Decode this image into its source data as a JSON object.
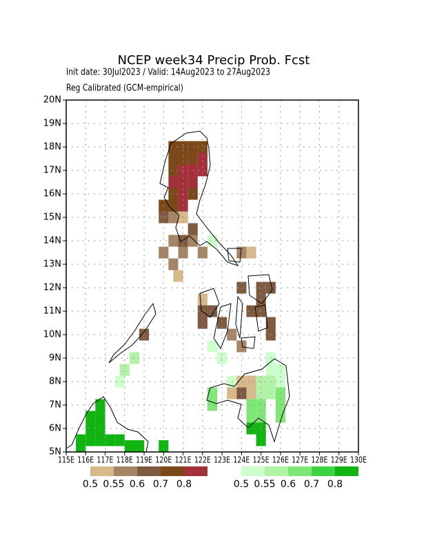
{
  "chart_data": {
    "type": "gridmap",
    "title": "NCEP week34 Precip Prob. Fcst",
    "subtitle": "Init date: 30Jul2023 / Valid: 14Aug2023 to 27Aug2023",
    "subtitle2": "Reg Calibrated (GCM-empirical)",
    "xlim": [
      115,
      130
    ],
    "ylim": [
      5,
      20
    ],
    "xticks": [
      {
        "value": 115,
        "label": "115E"
      },
      {
        "value": 116,
        "label": "116E"
      },
      {
        "value": 117,
        "label": "117E"
      },
      {
        "value": 118,
        "label": "118E"
      },
      {
        "value": 119,
        "label": "119E"
      },
      {
        "value": 120,
        "label": "120E"
      },
      {
        "value": 121,
        "label": "121E"
      },
      {
        "value": 122,
        "label": "122E"
      },
      {
        "value": 123,
        "label": "123E"
      },
      {
        "value": 124,
        "label": "124E"
      },
      {
        "value": 125,
        "label": "125E"
      },
      {
        "value": 126,
        "label": "126E"
      },
      {
        "value": 127,
        "label": "127E"
      },
      {
        "value": 128,
        "label": "128E"
      },
      {
        "value": 129,
        "label": "129E"
      },
      {
        "value": 130,
        "label": "130E"
      }
    ],
    "yticks": [
      {
        "value": 5,
        "label": "5N"
      },
      {
        "value": 6,
        "label": "6N"
      },
      {
        "value": 7,
        "label": "7N"
      },
      {
        "value": 8,
        "label": "8N"
      },
      {
        "value": 9,
        "label": "9N"
      },
      {
        "value": 10,
        "label": "10N"
      },
      {
        "value": 11,
        "label": "11N"
      },
      {
        "value": 12,
        "label": "12N"
      },
      {
        "value": 13,
        "label": "13N"
      },
      {
        "value": 14,
        "label": "14N"
      },
      {
        "value": 15,
        "label": "15N"
      },
      {
        "value": 16,
        "label": "16N"
      },
      {
        "value": 17,
        "label": "17N"
      },
      {
        "value": 18,
        "label": "18N"
      },
      {
        "value": 19,
        "label": "19N"
      },
      {
        "value": 20,
        "label": "20N"
      }
    ],
    "grid": true,
    "legend_dry": [
      {
        "label": "0.5",
        "color": "#d7b98c"
      },
      {
        "label": "0.55",
        "color": "#a58566"
      },
      {
        "label": "0.6",
        "color": "#7d5a40"
      },
      {
        "label": "0.7",
        "color": "#7b4818"
      },
      {
        "label": "0.8",
        "color": "#a3303a"
      }
    ],
    "legend_wet": [
      {
        "label": "0.5",
        "color": "#ccffcc"
      },
      {
        "label": "0.55",
        "color": "#b2f2a6"
      },
      {
        "label": "0.6",
        "color": "#80e678"
      },
      {
        "label": "0.7",
        "color": "#3ed246"
      },
      {
        "label": "0.8",
        "color": "#12b412"
      }
    ],
    "cells": [
      [
        120.5,
        18.0,
        "#7b4818"
      ],
      [
        121.0,
        18.0,
        "#7b4818"
      ],
      [
        121.5,
        18.0,
        "#7b4818"
      ],
      [
        122.0,
        18.0,
        "#7b4818"
      ],
      [
        120.5,
        17.5,
        "#7b4818"
      ],
      [
        121.0,
        17.5,
        "#7b4818"
      ],
      [
        121.5,
        17.5,
        "#7b4818"
      ],
      [
        122.0,
        17.5,
        "#a3303a"
      ],
      [
        120.5,
        17.0,
        "#7b4818"
      ],
      [
        121.0,
        17.0,
        "#a3303a"
      ],
      [
        121.5,
        17.0,
        "#a3303a"
      ],
      [
        122.0,
        17.0,
        "#a3303a"
      ],
      [
        120.5,
        16.5,
        "#a3303a"
      ],
      [
        121.0,
        16.5,
        "#a3303a"
      ],
      [
        121.5,
        16.5,
        "#a3303a"
      ],
      [
        120.5,
        16.0,
        "#7b4818"
      ],
      [
        121.0,
        16.0,
        "#a3303a"
      ],
      [
        121.5,
        16.0,
        "#7b4818"
      ],
      [
        120.0,
        15.5,
        "#7b4818"
      ],
      [
        120.5,
        15.5,
        "#7b4818"
      ],
      [
        121.0,
        15.5,
        "#a3303a"
      ],
      [
        120.0,
        15.0,
        "#7d5a40"
      ],
      [
        120.5,
        15.0,
        "#a58566"
      ],
      [
        121.0,
        15.0,
        "#d7b98c"
      ],
      [
        121.5,
        14.5,
        "#7d5a40"
      ],
      [
        120.5,
        14.0,
        "#a58566"
      ],
      [
        121.0,
        14.0,
        "#7d5a40"
      ],
      [
        121.5,
        14.0,
        "#a58566"
      ],
      [
        122.5,
        14.0,
        "#ccffcc"
      ],
      [
        120.0,
        13.5,
        "#a58566"
      ],
      [
        121.0,
        13.5,
        "#a58566"
      ],
      [
        122.0,
        13.5,
        "#a58566"
      ],
      [
        124.0,
        13.5,
        "#a58566"
      ],
      [
        124.5,
        13.5,
        "#d7b98c"
      ],
      [
        120.5,
        13.0,
        "#a58566"
      ],
      [
        120.75,
        12.5,
        "#d7b98c"
      ],
      [
        124.0,
        12.0,
        "#7d5a40"
      ],
      [
        125.0,
        12.0,
        "#7d5a40"
      ],
      [
        125.5,
        12.0,
        "#7d5a40"
      ],
      [
        122.0,
        11.5,
        "#d7b98c"
      ],
      [
        125.0,
        11.5,
        "#7d5a40"
      ],
      [
        122.0,
        11.0,
        "#7d5a40"
      ],
      [
        122.5,
        11.0,
        "#7d5a40"
      ],
      [
        124.5,
        11.0,
        "#7d5a40"
      ],
      [
        125.0,
        11.0,
        "#7d5a40"
      ],
      [
        122.0,
        10.5,
        "#7d5a40"
      ],
      [
        123.0,
        10.5,
        "#7d5a40"
      ],
      [
        125.5,
        10.5,
        "#7d5a40"
      ],
      [
        119.0,
        10.0,
        "#7d5a40"
      ],
      [
        123.5,
        10.0,
        "#a58566"
      ],
      [
        125.5,
        10.0,
        "#7d5a40"
      ],
      [
        124.0,
        9.5,
        "#a58566"
      ],
      [
        122.5,
        9.5,
        "#ccffcc"
      ],
      [
        118.5,
        9.0,
        "#b2f2a6"
      ],
      [
        123.0,
        9.0,
        "#ccffcc"
      ],
      [
        125.5,
        9.0,
        "#ccffcc"
      ],
      [
        118.0,
        8.5,
        "#b2f2a6"
      ],
      [
        125.5,
        8.5,
        "#ccffcc"
      ],
      [
        126.0,
        8.5,
        "#ccffcc"
      ],
      [
        117.75,
        8.0,
        "#ccffcc"
      ],
      [
        123.5,
        8.0,
        "#ccffcc"
      ],
      [
        124.0,
        8.0,
        "#d7b98c"
      ],
      [
        124.5,
        8.0,
        "#d7b98c"
      ],
      [
        125.0,
        8.0,
        "#b2f2a6"
      ],
      [
        125.5,
        8.0,
        "#b2f2a6"
      ],
      [
        126.0,
        8.0,
        "#ccffcc"
      ],
      [
        122.5,
        7.5,
        "#80e678"
      ],
      [
        123.5,
        7.5,
        "#d7b98c"
      ],
      [
        124.0,
        7.5,
        "#7d5a40"
      ],
      [
        124.5,
        7.5,
        "#d7b98c"
      ],
      [
        125.0,
        7.5,
        "#b2f2a6"
      ],
      [
        125.5,
        7.5,
        "#b2f2a6"
      ],
      [
        126.0,
        7.5,
        "#80e678"
      ],
      [
        116.75,
        7.0,
        "#12b412"
      ],
      [
        122.5,
        7.0,
        "#80e678"
      ],
      [
        124.5,
        7.0,
        "#80e678"
      ],
      [
        125.0,
        7.0,
        "#80e678"
      ],
      [
        126.0,
        7.0,
        "#80e678"
      ],
      [
        116.25,
        6.5,
        "#12b412"
      ],
      [
        116.75,
        6.5,
        "#12b412"
      ],
      [
        124.5,
        6.5,
        "#80e678"
      ],
      [
        125.0,
        6.5,
        "#80e678"
      ],
      [
        126.0,
        6.5,
        "#80e678"
      ],
      [
        116.25,
        6.0,
        "#12b412"
      ],
      [
        116.75,
        6.0,
        "#12b412"
      ],
      [
        124.5,
        6.0,
        "#12b412"
      ],
      [
        125.0,
        6.0,
        "#12b412"
      ],
      [
        115.75,
        5.5,
        "#12b412"
      ],
      [
        116.25,
        5.5,
        "#12b412"
      ],
      [
        116.75,
        5.5,
        "#12b412"
      ],
      [
        117.25,
        5.5,
        "#12b412"
      ],
      [
        117.75,
        5.5,
        "#12b412"
      ],
      [
        125.0,
        5.5,
        "#12b412"
      ],
      [
        115.75,
        5.25,
        "#12b412"
      ],
      [
        118.25,
        5.25,
        "#12b412"
      ],
      [
        118.75,
        5.25,
        "#12b412"
      ],
      [
        120.0,
        5.25,
        "#12b412"
      ]
    ]
  }
}
